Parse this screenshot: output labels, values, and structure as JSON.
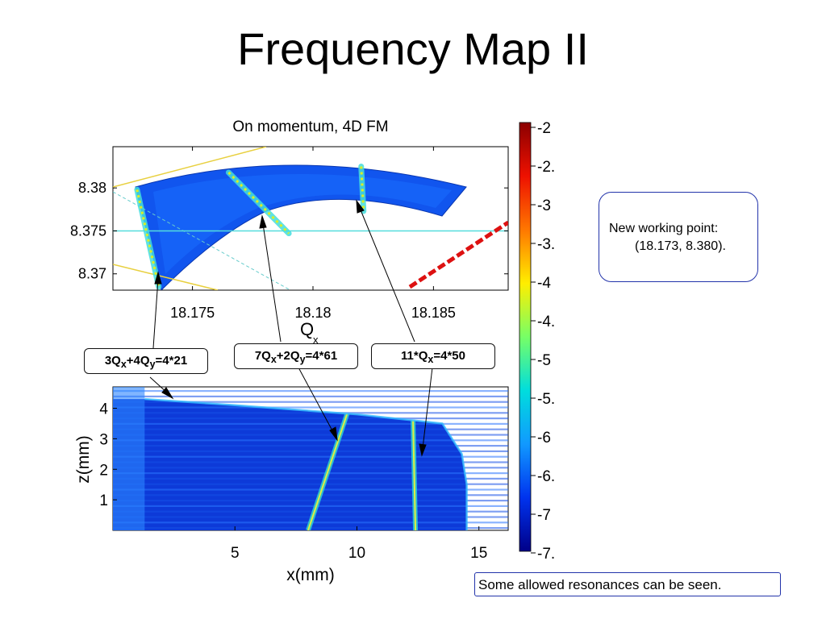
{
  "slide": {
    "title": "Frequency Map II",
    "note": {
      "line1": "New working point:",
      "line2": "(18.173, 8.380)."
    },
    "caption": "Some allowed resonances can be seen."
  },
  "resonances": [
    {
      "name": "3Qx+4Qy=4*21",
      "base": "3Q",
      "s1": "x",
      "mid": "+4Q",
      "s2": "y",
      "tail": "=4*21"
    },
    {
      "name": "7Qx+2Qy=4*61",
      "base": "7Q",
      "s1": "x",
      "mid": "+2Q",
      "s2": "y",
      "tail": "=4*61"
    },
    {
      "name": "11*Qx=4*50",
      "base": "11*Q",
      "s1": "x",
      "mid": "",
      "s2": "",
      "tail": "=4*50"
    }
  ],
  "chart_data": [
    {
      "type": "scatter",
      "title": "On momentum, 4D FM",
      "xlabel": "Q",
      "xlabel_sub": "x",
      "ylabel": "",
      "xlim": [
        18.1717,
        18.1881
      ],
      "ylim": [
        8.3681,
        8.3848
      ],
      "xticks": [
        "18.175",
        "18.18",
        "18.185"
      ],
      "xtick_values": [
        18.175,
        18.18,
        18.185
      ],
      "yticks": [
        "8.38",
        "8.375",
        "8.37"
      ],
      "ytick_values": [
        8.38,
        8.375,
        8.37
      ],
      "working_point_line_y": 8.375,
      "resonance_lines": [
        {
          "name": "3Qx+4Qy=4*21",
          "from": [
            18.1727,
            8.3798
          ],
          "to": [
            18.1736,
            8.3685
          ]
        },
        {
          "name": "7Qx+2Qy=4*61",
          "from": [
            18.1765,
            8.3818
          ],
          "to": [
            18.179,
            8.3747
          ]
        },
        {
          "name": "11*Qx=4*50",
          "from": [
            18.182,
            8.3825
          ],
          "to": [
            18.1821,
            8.3773
          ]
        }
      ]
    },
    {
      "type": "heatmap",
      "title": "",
      "xlabel": "x(mm)",
      "ylabel": "z(mm)",
      "xlim": [
        0,
        16.2
      ],
      "ylim": [
        0,
        4.7
      ],
      "xticks": [
        "5",
        "10",
        "15"
      ],
      "xtick_values": [
        5,
        10,
        15
      ],
      "yticks": [
        "4",
        "3",
        "2",
        "1"
      ],
      "ytick_values": [
        4,
        3,
        2,
        1
      ],
      "boundary": [
        [
          1.3,
          4.3
        ],
        [
          5,
          4.1
        ],
        [
          10,
          3.8
        ],
        [
          13.5,
          3.5
        ],
        [
          14.3,
          2.5
        ],
        [
          14.5,
          1.5
        ],
        [
          14.5,
          0
        ]
      ],
      "resonance_lines": [
        {
          "name": "7Qx+2Qy=4*61",
          "x_at_bottom": 8.0,
          "x_at_top": 9.6
        },
        {
          "name": "11*Qx=4*50",
          "x_at_bottom": 12.4,
          "x_at_top": 12.3
        }
      ]
    }
  ],
  "colorbar": {
    "ticks": [
      "-2",
      "-2.",
      "-3",
      "-3.",
      "-4",
      "-4.",
      "-5",
      "-5.",
      "-6",
      "-6.",
      "-7",
      "-7."
    ],
    "colors": [
      "#8b0000",
      "#ee1100",
      "#ff7700",
      "#ffee00",
      "#77ff66",
      "#00dddd",
      "#1199ff",
      "#0033ee",
      "#000088"
    ]
  }
}
